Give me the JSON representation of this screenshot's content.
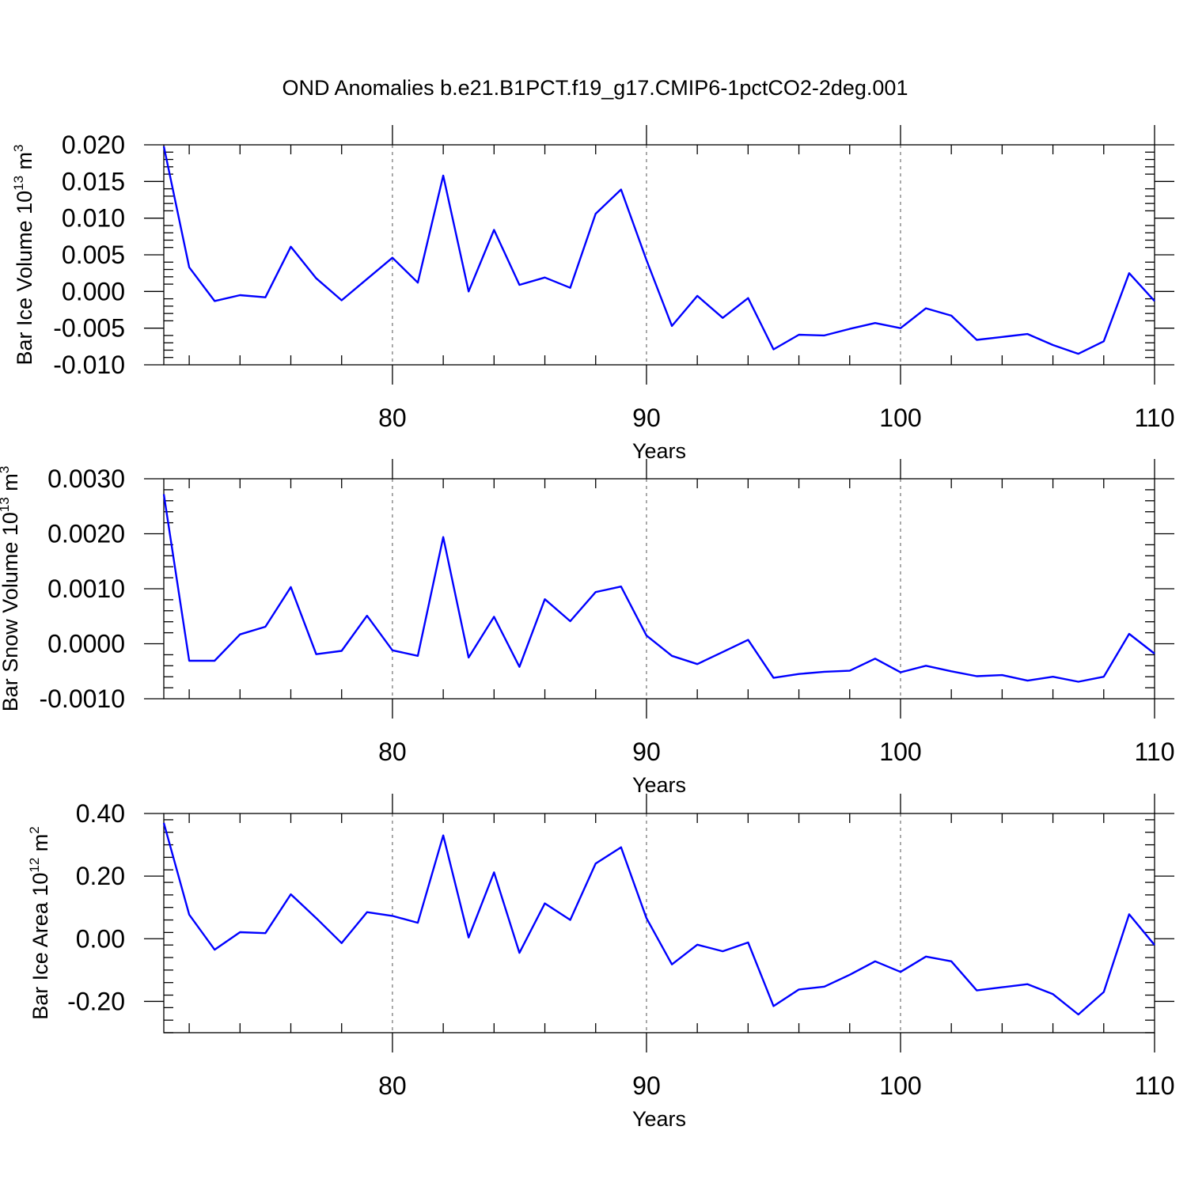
{
  "title": "OND Anomalies b.e21.B1PCT.f19_g17.CMIP6-1pctCO2-2deg.001",
  "colors": {
    "series": "#0000ff",
    "axis": "#000000",
    "grid": "#555555"
  },
  "chart_data": [
    {
      "type": "line",
      "ylabel": {
        "main": "Bar Ice Volume 10",
        "exp": "13",
        "unit": " m",
        "unit_exp": "3"
      },
      "xlabel": "Years",
      "xlim": [
        71,
        110
      ],
      "ylim": [
        -0.01,
        0.02
      ],
      "xticks": [
        80,
        90,
        100,
        110
      ],
      "xtick_labels": [
        "80",
        "90",
        "100",
        "110"
      ],
      "yticks": [
        -0.01,
        -0.005,
        0.0,
        0.005,
        0.01,
        0.015,
        0.02
      ],
      "ytick_labels": [
        "-0.010",
        "-0.005",
        "0.000",
        "0.005",
        "0.010",
        "0.015",
        "0.020"
      ],
      "grid": "dashed vertical at major x ticks",
      "x": [
        71,
        72,
        73,
        74,
        75,
        76,
        77,
        78,
        79,
        80,
        81,
        82,
        83,
        84,
        85,
        86,
        87,
        88,
        89,
        90,
        91,
        92,
        93,
        94,
        95,
        96,
        97,
        98,
        99,
        100,
        101,
        102,
        103,
        104,
        105,
        106,
        107,
        108,
        109,
        110
      ],
      "values": [
        0.0198,
        0.0033,
        -0.0013,
        -0.0005,
        -0.0008,
        0.0061,
        0.0018,
        -0.0012,
        0.0017,
        0.0046,
        0.0012,
        0.0158,
        0.0,
        0.0084,
        0.0009,
        0.0019,
        0.0005,
        0.0106,
        0.0139,
        0.0043,
        -0.0047,
        -0.0006,
        -0.0036,
        -0.0009,
        -0.0079,
        -0.0059,
        -0.006,
        -0.0051,
        -0.0043,
        -0.005,
        -0.0023,
        -0.0033,
        -0.0066,
        -0.0062,
        -0.0058,
        -0.0073,
        -0.0085,
        -0.0068,
        0.0025,
        -0.0013
      ]
    },
    {
      "type": "line",
      "ylabel": {
        "main": "Bar Snow Volume 10",
        "exp": "13",
        "unit": " m",
        "unit_exp": "3"
      },
      "xlabel": "Years",
      "xlim": [
        71,
        110
      ],
      "ylim": [
        -0.001,
        0.003
      ],
      "xticks": [
        80,
        90,
        100,
        110
      ],
      "xtick_labels": [
        "80",
        "90",
        "100",
        "110"
      ],
      "yticks": [
        -0.001,
        0.0,
        0.001,
        0.002,
        0.003
      ],
      "ytick_labels": [
        "-0.0010",
        "0.0000",
        "0.0010",
        "0.0020",
        "0.0030"
      ],
      "grid": "dashed vertical at major x ticks",
      "x": [
        71,
        72,
        73,
        74,
        75,
        76,
        77,
        78,
        79,
        80,
        81,
        82,
        83,
        84,
        85,
        86,
        87,
        88,
        89,
        90,
        91,
        92,
        93,
        94,
        95,
        96,
        97,
        98,
        99,
        100,
        101,
        102,
        103,
        104,
        105,
        106,
        107,
        108,
        109,
        110
      ],
      "values": [
        0.00272,
        -0.00031,
        -0.00031,
        0.00017,
        0.00031,
        0.00103,
        -0.00019,
        -0.00013,
        0.00051,
        -0.00012,
        -0.00022,
        0.00194,
        -0.00025,
        0.00049,
        -0.00042,
        0.00081,
        0.00041,
        0.00094,
        0.00104,
        0.00015,
        -0.00022,
        -0.00037,
        -0.00015,
        7e-05,
        -0.00062,
        -0.00055,
        -0.00051,
        -0.00049,
        -0.00027,
        -0.00052,
        -0.0004,
        -0.0005,
        -0.00059,
        -0.00057,
        -0.00067,
        -0.0006,
        -0.00069,
        -0.0006,
        0.00018,
        -0.00018
      ]
    },
    {
      "type": "line",
      "ylabel": {
        "main": "Bar Ice Area 10",
        "exp": "12",
        "unit": " m",
        "unit_exp": "2"
      },
      "xlabel": "Years",
      "xlim": [
        71,
        110
      ],
      "ylim": [
        -0.3,
        0.4
      ],
      "xticks": [
        80,
        90,
        100,
        110
      ],
      "xtick_labels": [
        "80",
        "90",
        "100",
        "110"
      ],
      "yticks": [
        -0.2,
        0.0,
        0.2,
        0.4
      ],
      "ytick_labels": [
        "-0.20",
        "0.00",
        "0.20",
        "0.40"
      ],
      "grid": "dashed vertical at major x ticks",
      "x": [
        71,
        72,
        73,
        74,
        75,
        76,
        77,
        78,
        79,
        80,
        81,
        82,
        83,
        84,
        85,
        86,
        87,
        88,
        89,
        90,
        91,
        92,
        93,
        94,
        95,
        96,
        97,
        98,
        99,
        100,
        101,
        102,
        103,
        104,
        105,
        106,
        107,
        108,
        109,
        110
      ],
      "values": [
        0.37,
        0.077,
        -0.035,
        0.021,
        0.018,
        0.142,
        0.066,
        -0.014,
        0.085,
        0.073,
        0.051,
        0.33,
        0.004,
        0.212,
        -0.045,
        0.113,
        0.06,
        0.24,
        0.292,
        0.066,
        -0.082,
        -0.019,
        -0.04,
        -0.012,
        -0.215,
        -0.162,
        -0.153,
        -0.115,
        -0.072,
        -0.106,
        -0.057,
        -0.072,
        -0.165,
        -0.155,
        -0.145,
        -0.177,
        -0.242,
        -0.17,
        0.078,
        -0.02
      ]
    }
  ]
}
